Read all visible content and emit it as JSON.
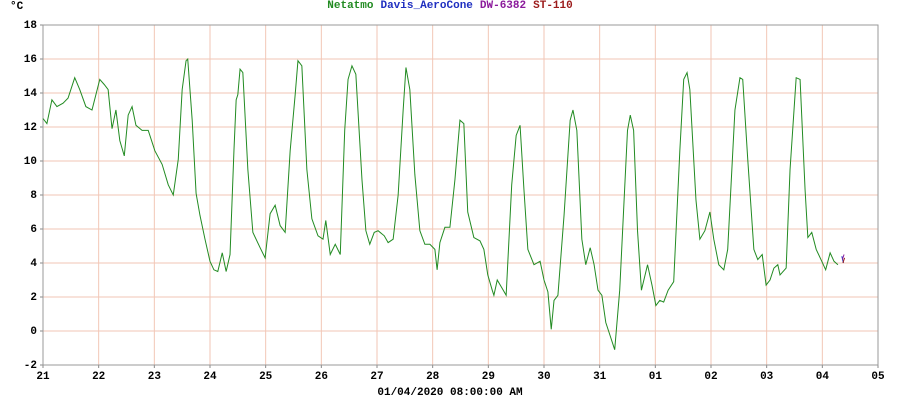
{
  "chart_data": {
    "type": "line",
    "ylabel": "°C",
    "xlabel": "01/04/2020 08:00:00 AM",
    "xlim": [
      0,
      15
    ],
    "ylim": [
      -2,
      18
    ],
    "xticks": [
      {
        "value": 0,
        "label": "21"
      },
      {
        "value": 1,
        "label": "22"
      },
      {
        "value": 2,
        "label": "23"
      },
      {
        "value": 3,
        "label": "24"
      },
      {
        "value": 4,
        "label": "25"
      },
      {
        "value": 5,
        "label": "26"
      },
      {
        "value": 6,
        "label": "27"
      },
      {
        "value": 7,
        "label": "28"
      },
      {
        "value": 8,
        "label": "29"
      },
      {
        "value": 9,
        "label": "30"
      },
      {
        "value": 10,
        "label": "31"
      },
      {
        "value": 11,
        "label": "01"
      },
      {
        "value": 12,
        "label": "02"
      },
      {
        "value": 13,
        "label": "03"
      },
      {
        "value": 14,
        "label": "04"
      },
      {
        "value": 15,
        "label": "05"
      }
    ],
    "yticks": [
      -2,
      0,
      2,
      4,
      6,
      8,
      10,
      12,
      14,
      16,
      18
    ],
    "grid": true,
    "series": [
      {
        "name": "Netatmo",
        "color": "#228b22",
        "x": [
          0,
          0.07,
          0.16,
          0.25,
          0.36,
          0.45,
          0.57,
          0.66,
          0.77,
          0.88,
          0.95,
          1.02,
          1.1,
          1.17,
          1.24,
          1.31,
          1.38,
          1.46,
          1.53,
          1.6,
          1.67,
          1.78,
          1.89,
          2.01,
          2.14,
          2.25,
          2.34,
          2.43,
          2.5,
          2.57,
          2.6,
          2.68,
          2.75,
          2.82,
          2.91,
          3.0,
          3.07,
          3.14,
          3.22,
          3.29,
          3.36,
          3.43,
          3.47,
          3.5,
          3.54,
          3.59,
          3.68,
          3.77,
          3.9,
          3.99,
          4.08,
          4.17,
          4.26,
          4.35,
          4.44,
          4.53,
          4.58,
          4.65,
          4.74,
          4.83,
          4.94,
          5.03,
          5.08,
          5.16,
          5.25,
          5.34,
          5.42,
          5.48,
          5.55,
          5.62,
          5.73,
          5.8,
          5.87,
          5.95,
          6.02,
          6.13,
          6.2,
          6.29,
          6.38,
          6.47,
          6.52,
          6.59,
          6.68,
          6.77,
          6.86,
          6.95,
          7.04,
          7.08,
          7.13,
          7.22,
          7.31,
          7.4,
          7.49,
          7.56,
          7.63,
          7.74,
          7.85,
          7.92,
          7.99,
          8.07,
          8.1,
          8.16,
          8.25,
          8.32,
          8.42,
          8.5,
          8.57,
          8.64,
          8.71,
          8.82,
          8.93,
          9.0,
          9.07,
          9.13,
          9.18,
          9.25,
          9.36,
          9.47,
          9.52,
          9.59,
          9.68,
          9.75,
          9.83,
          9.9,
          9.97,
          10.04,
          10.11,
          10.18,
          10.27,
          10.36,
          10.43,
          10.5,
          10.55,
          10.61,
          10.68,
          10.75,
          10.86,
          10.94,
          11.01,
          11.08,
          11.15,
          11.23,
          11.33,
          11.44,
          11.51,
          11.57,
          11.62,
          11.73,
          11.8,
          11.89,
          11.98,
          12.05,
          12.14,
          12.23,
          12.3,
          12.43,
          12.52,
          12.57,
          12.66,
          12.77,
          12.84,
          12.92,
          12.99,
          13.06,
          13.13,
          13.2,
          13.24,
          13.35,
          13.42,
          13.53,
          13.6,
          13.69,
          13.74,
          13.81,
          13.89,
          13.99,
          14.06,
          14.14,
          14.21,
          14.28
        ],
        "values": [
          12.5,
          12.2,
          13.6,
          13.2,
          13.4,
          13.7,
          14.9,
          14.2,
          13.2,
          13.0,
          13.9,
          14.8,
          14.5,
          14.2,
          11.9,
          13.0,
          11.2,
          10.3,
          12.7,
          13.2,
          12.1,
          11.8,
          11.8,
          10.6,
          9.8,
          8.6,
          8.0,
          10.1,
          14.2,
          15.9,
          16.0,
          12.4,
          8.1,
          6.8,
          5.4,
          4.1,
          3.6,
          3.5,
          4.6,
          3.5,
          4.5,
          10.6,
          13.6,
          13.9,
          15.4,
          15.2,
          9.5,
          5.8,
          4.9,
          4.3,
          6.9,
          7.4,
          6.2,
          5.8,
          10.6,
          13.9,
          15.9,
          15.6,
          9.5,
          6.6,
          5.6,
          5.4,
          6.5,
          4.5,
          5.1,
          4.5,
          11.8,
          14.8,
          15.6,
          15.1,
          8.9,
          5.9,
          5.1,
          5.8,
          5.9,
          5.6,
          5.2,
          5.4,
          8.0,
          13.0,
          15.5,
          14.2,
          9.2,
          5.9,
          5.1,
          5.1,
          4.8,
          3.6,
          5.2,
          6.1,
          6.1,
          8.9,
          12.4,
          12.2,
          7.0,
          5.5,
          5.3,
          4.8,
          3.3,
          2.4,
          2.1,
          3.0,
          2.5,
          2.1,
          8.6,
          11.5,
          12.1,
          8.3,
          4.8,
          3.9,
          4.1,
          3.0,
          2.3,
          0.1,
          1.8,
          2.1,
          6.8,
          12.4,
          13.0,
          11.8,
          5.4,
          3.9,
          4.9,
          3.9,
          2.4,
          2.1,
          0.5,
          -0.2,
          -1.1,
          2.4,
          7.1,
          11.8,
          12.7,
          11.8,
          5.9,
          2.4,
          3.9,
          2.7,
          1.5,
          1.8,
          1.7,
          2.4,
          2.9,
          10.6,
          14.8,
          15.2,
          14.2,
          7.7,
          5.4,
          5.9,
          7.0,
          5.4,
          3.9,
          3.6,
          4.8,
          13.0,
          14.9,
          14.8,
          10.1,
          4.8,
          4.2,
          4.5,
          2.7,
          3.0,
          3.7,
          3.9,
          3.3,
          3.7,
          9.5,
          14.9,
          14.8,
          8.3,
          5.5,
          5.8,
          4.8,
          4.1,
          3.6,
          4.6,
          4.1,
          3.9
        ]
      },
      {
        "name": "Davis_AeroCone",
        "color": "#1f2fc0",
        "x": [
          14.35,
          14.38
        ],
        "values": [
          4.4,
          4.0
        ]
      },
      {
        "name": "DW-6382",
        "color": "#8b1a9b",
        "x": [
          14.36,
          14.39
        ],
        "values": [
          4.2,
          4.5
        ]
      },
      {
        "name": "ST-110",
        "color": "#9b1a1a",
        "x": [
          14.37,
          14.4
        ],
        "values": [
          4.0,
          4.3
        ]
      }
    ]
  }
}
